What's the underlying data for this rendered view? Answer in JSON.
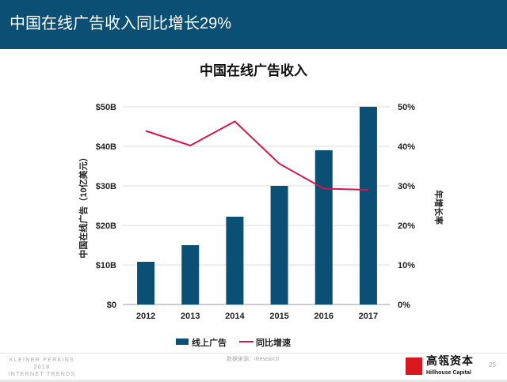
{
  "header": {
    "title": "中国在线广告收入同比增长29%"
  },
  "chart_data": {
    "type": "bar+line",
    "title": "中国在线广告收入",
    "categories": [
      "2012",
      "2013",
      "2014",
      "2015",
      "2016",
      "2017"
    ],
    "series": [
      {
        "name": "线上广告",
        "type": "bar",
        "axis": "left",
        "values": [
          10.8,
          15.0,
          22.2,
          30.0,
          39.0,
          50.0
        ],
        "color": "#0b4f74"
      },
      {
        "name": "同比增速",
        "type": "line",
        "axis": "right",
        "values": [
          43.9,
          40.2,
          46.3,
          35.6,
          29.3,
          29.0
        ],
        "color": "#d0184f"
      }
    ],
    "ylabel": "中国在线广告（10亿美元）",
    "y2label": "年增长率",
    "ylim": [
      0,
      50
    ],
    "y2lim": [
      0,
      50
    ],
    "yticks": [
      "$0",
      "$10B",
      "$20B",
      "$30B",
      "$40B",
      "$50B"
    ],
    "y2ticks": [
      "0%",
      "10%",
      "20%",
      "30%",
      "40%",
      "50%"
    ],
    "grid": true,
    "legend": "bottom"
  },
  "footer": {
    "brand_lines": [
      "KLEINER PERKINS",
      "2018",
      "INTERNET TRENDS"
    ],
    "source": "数据来源：iResearch",
    "logo_cn": "高瓴资本",
    "logo_en": "Hillhouse Capital",
    "logo_box": "HILLHOUSE",
    "page": "25"
  }
}
